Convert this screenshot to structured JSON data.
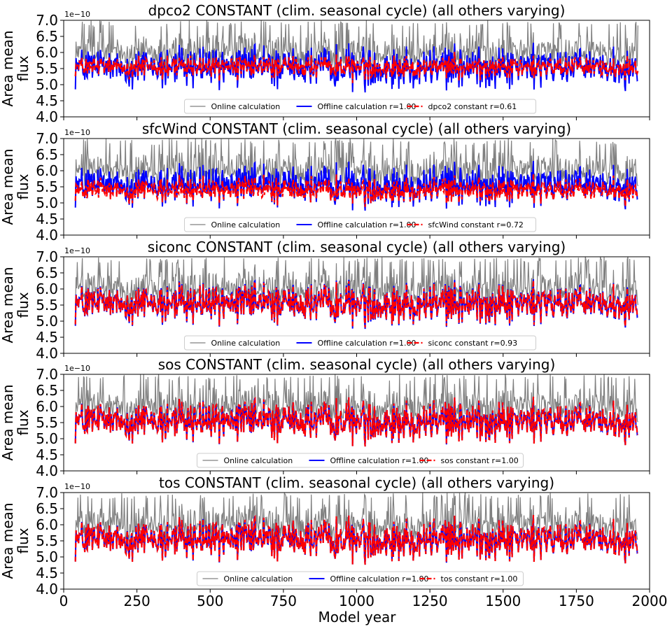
{
  "chart_data": {
    "type": "line",
    "xlabel": "Model year",
    "xlim": [
      0,
      2000
    ],
    "x_ticks": [
      "0",
      "250",
      "500",
      "750",
      "1000",
      "1250",
      "1500",
      "1750",
      "2000"
    ],
    "ylabel": [
      "Area mean",
      "flux"
    ],
    "y_multiplier": "1e−10",
    "ylim": [
      4.0,
      7.0
    ],
    "y_ticks": [
      "4.0",
      "4.5",
      "5.0",
      "5.5",
      "6.0",
      "6.5",
      "7.0"
    ],
    "colors": {
      "online": "#808080",
      "offline": "#0000ff",
      "constant": "#ff0000"
    },
    "series_style": {
      "online": {
        "mean": 6.0,
        "amplitude": 0.35,
        "spike_max": 7.0
      },
      "offline": {
        "mean": 5.55,
        "amplitude": 0.38
      },
      "x_start": 40,
      "x_end": 1960
    },
    "panels": [
      {
        "title": "dpco2 CONSTANT (clim. seasonal cycle) (all others varying)",
        "legend": [
          "Online calculation",
          "Offline calculation r=1.00",
          "dpco2 constant r=0.61"
        ],
        "constant_mean": 5.55,
        "constant_amplitude": 0.2
      },
      {
        "title": "sfcWind CONSTANT (clim. seasonal cycle) (all others varying)",
        "legend": [
          "Online calculation",
          "Offline calculation r=1.00",
          "sfcWind constant r=0.72"
        ],
        "constant_mean": 5.4,
        "constant_amplitude": 0.22
      },
      {
        "title": "siconc CONSTANT (clim. seasonal cycle) (all others varying)",
        "legend": [
          "Online calculation",
          "Offline calculation r=1.00",
          "siconc constant r=0.93"
        ],
        "constant_mean": 5.55,
        "constant_amplitude": 0.36
      },
      {
        "title": "sos CONSTANT (clim. seasonal cycle) (all others varying)",
        "legend": [
          "Online calculation",
          "Offline calculation r=1.00",
          "sos constant r=1.00"
        ],
        "constant_mean": 5.55,
        "constant_amplitude": 0.38
      },
      {
        "title": "tos CONSTANT (clim. seasonal cycle) (all others varying)",
        "legend": [
          "Online calculation",
          "Offline calculation r=1.00",
          "tos constant r=1.00"
        ],
        "constant_mean": 5.55,
        "constant_amplitude": 0.38
      }
    ]
  }
}
